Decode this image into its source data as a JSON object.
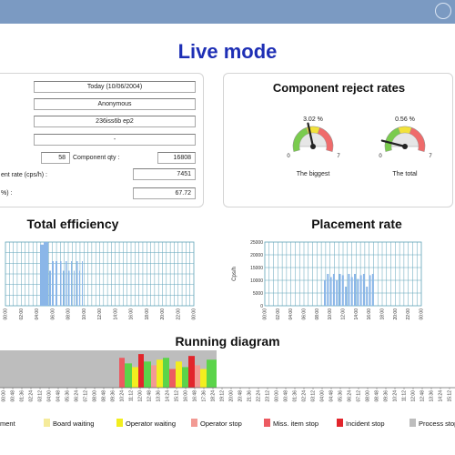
{
  "page": {
    "title": "Live mode"
  },
  "info": {
    "date": "Today (10/06/2004)",
    "user": "Anonymous",
    "program": "236iss6b ep2",
    "dash": "-",
    "count_value": "58",
    "component_qty_label": "Component qty :",
    "component_qty_value": "16808",
    "placement_rate_label": "ent rate (cps/h) :",
    "placement_rate_value": "7451",
    "efficiency_label": "%) :",
    "efficiency_value": "67.72"
  },
  "reject": {
    "title": "Component reject rates",
    "gauges": [
      {
        "pct_label": "3.02 %",
        "caption": "The biggest",
        "min": "0",
        "max": "7",
        "value": 3.02,
        "range_max": 7
      },
      {
        "pct_label": "0.56 %",
        "caption": "The total",
        "min": "0",
        "max": "7",
        "value": 0.56,
        "range_max": 7
      }
    ]
  },
  "efficiency": {
    "title": "Total efficiency",
    "x_ticks": [
      "00:00",
      "02:00",
      "04:00",
      "06:00",
      "08:00",
      "10:00",
      "12:00",
      "14:00",
      "16:00",
      "18:00",
      "20:00",
      "22:00",
      "00:00"
    ]
  },
  "placement": {
    "title": "Placement rate",
    "ylabel": "Cps/h",
    "y_ticks": [
      "25000",
      "20000",
      "15000",
      "10000",
      "5000",
      "0"
    ],
    "x_ticks": [
      "00:00",
      "02:00",
      "04:00",
      "06:00",
      "08:00",
      "10:00",
      "12:00",
      "14:00",
      "16:00",
      "18:00",
      "20:00",
      "22:00",
      "00:00"
    ]
  },
  "running": {
    "title": "Running diagram",
    "x_ticks": [
      "00:00",
      "00:48",
      "01:36",
      "02:24",
      "03:12",
      "04:00",
      "04:48",
      "05:36",
      "06:24",
      "07:12",
      "08:00",
      "08:48",
      "09:36",
      "10:24",
      "11:12",
      "12:00",
      "12:48",
      "13:36",
      "14:24",
      "15:12",
      "16:00",
      "16:48",
      "17:36",
      "18:24",
      "19:12",
      "20:00",
      "20:48",
      "21:36",
      "22:24",
      "23:12",
      "00:00",
      "00:48",
      "01:36",
      "02:24",
      "03:12",
      "04:00",
      "04:48",
      "05:36",
      "06:24",
      "07:12",
      "08:00",
      "08:48",
      "09:36",
      "10:24",
      "11:12",
      "12:00",
      "12:48",
      "13:36",
      "14:24",
      "15:12",
      "16:00"
    ]
  },
  "legend": [
    {
      "label": "ment",
      "color": ""
    },
    {
      "label": "Board waiting",
      "color": "#f5eb9b"
    },
    {
      "label": "Operator waiting",
      "color": "#f2ee1f"
    },
    {
      "label": "Operator stop",
      "color": "#f29a94"
    },
    {
      "label": "Miss. item stop",
      "color": "#ec5a61"
    },
    {
      "label": "Incident stop",
      "color": "#e2252c"
    },
    {
      "label": "Process stop",
      "color": "#bdbdbd"
    }
  ],
  "colors": {
    "title_blue": "#1e2fb5",
    "topbar": "#7b9ac2",
    "grid": "#5fa3b8",
    "bar_blue": "#8ab6e8",
    "green": "#5bd44a",
    "yellow": "#f2ee1f",
    "red": "#e2252c",
    "grey": "#bdbdbd"
  }
}
